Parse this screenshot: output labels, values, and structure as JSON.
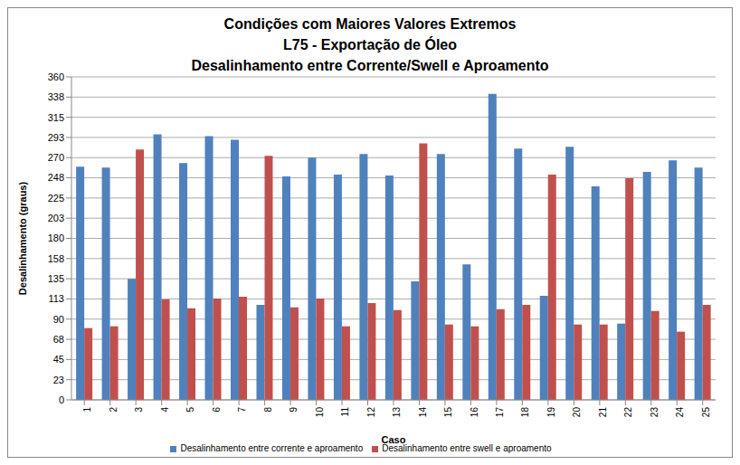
{
  "chart_data": {
    "type": "bar",
    "title": "Condições com Maiores Valores Extremos\nL75 - Exportação de Óleo\nDesalinhamento entre Corrente/Swell e Aproamento",
    "x_label": "Caso",
    "y_label": "Desalinhamento (graus)",
    "categories": [
      "1",
      "2",
      "3",
      "4",
      "5",
      "6",
      "7",
      "8",
      "9",
      "10",
      "11",
      "12",
      "13",
      "14",
      "15",
      "16",
      "17",
      "18",
      "19",
      "20",
      "21",
      "22",
      "23",
      "24",
      "25"
    ],
    "series": [
      {
        "name": "Desalinhamento entre corrente e aproamento",
        "color": "#4f81bd",
        "values": [
          260,
          259,
          135,
          296,
          264,
          294,
          290,
          106,
          249,
          270,
          251,
          274,
          250,
          132,
          274,
          151,
          341,
          280,
          116,
          282,
          238,
          85,
          254,
          267,
          259
        ]
      },
      {
        "name": "Desalinhamento entre swell e aproamento",
        "color": "#c0504d",
        "values": [
          80,
          82,
          279,
          112,
          102,
          113,
          115,
          272,
          103,
          113,
          82,
          108,
          100,
          286,
          84,
          82,
          101,
          106,
          251,
          84,
          84,
          247,
          99,
          76,
          106
        ]
      }
    ],
    "ylim": [
      0,
      360
    ],
    "yticks": [
      0,
      {
        "value": 22.5,
        "label": "23"
      },
      45,
      {
        "value": 67.5,
        "label": "68"
      },
      90,
      {
        "value": 112.5,
        "label": "113"
      },
      135,
      {
        "value": 157.5,
        "label": "158"
      },
      180,
      {
        "value": 202.5,
        "label": "203"
      },
      225,
      {
        "value": 247.5,
        "label": "248"
      },
      270,
      {
        "value": 292.5,
        "label": "293"
      },
      315,
      {
        "value": 337.5,
        "label": "338"
      },
      360
    ],
    "grid": true,
    "legend": "bottom"
  }
}
